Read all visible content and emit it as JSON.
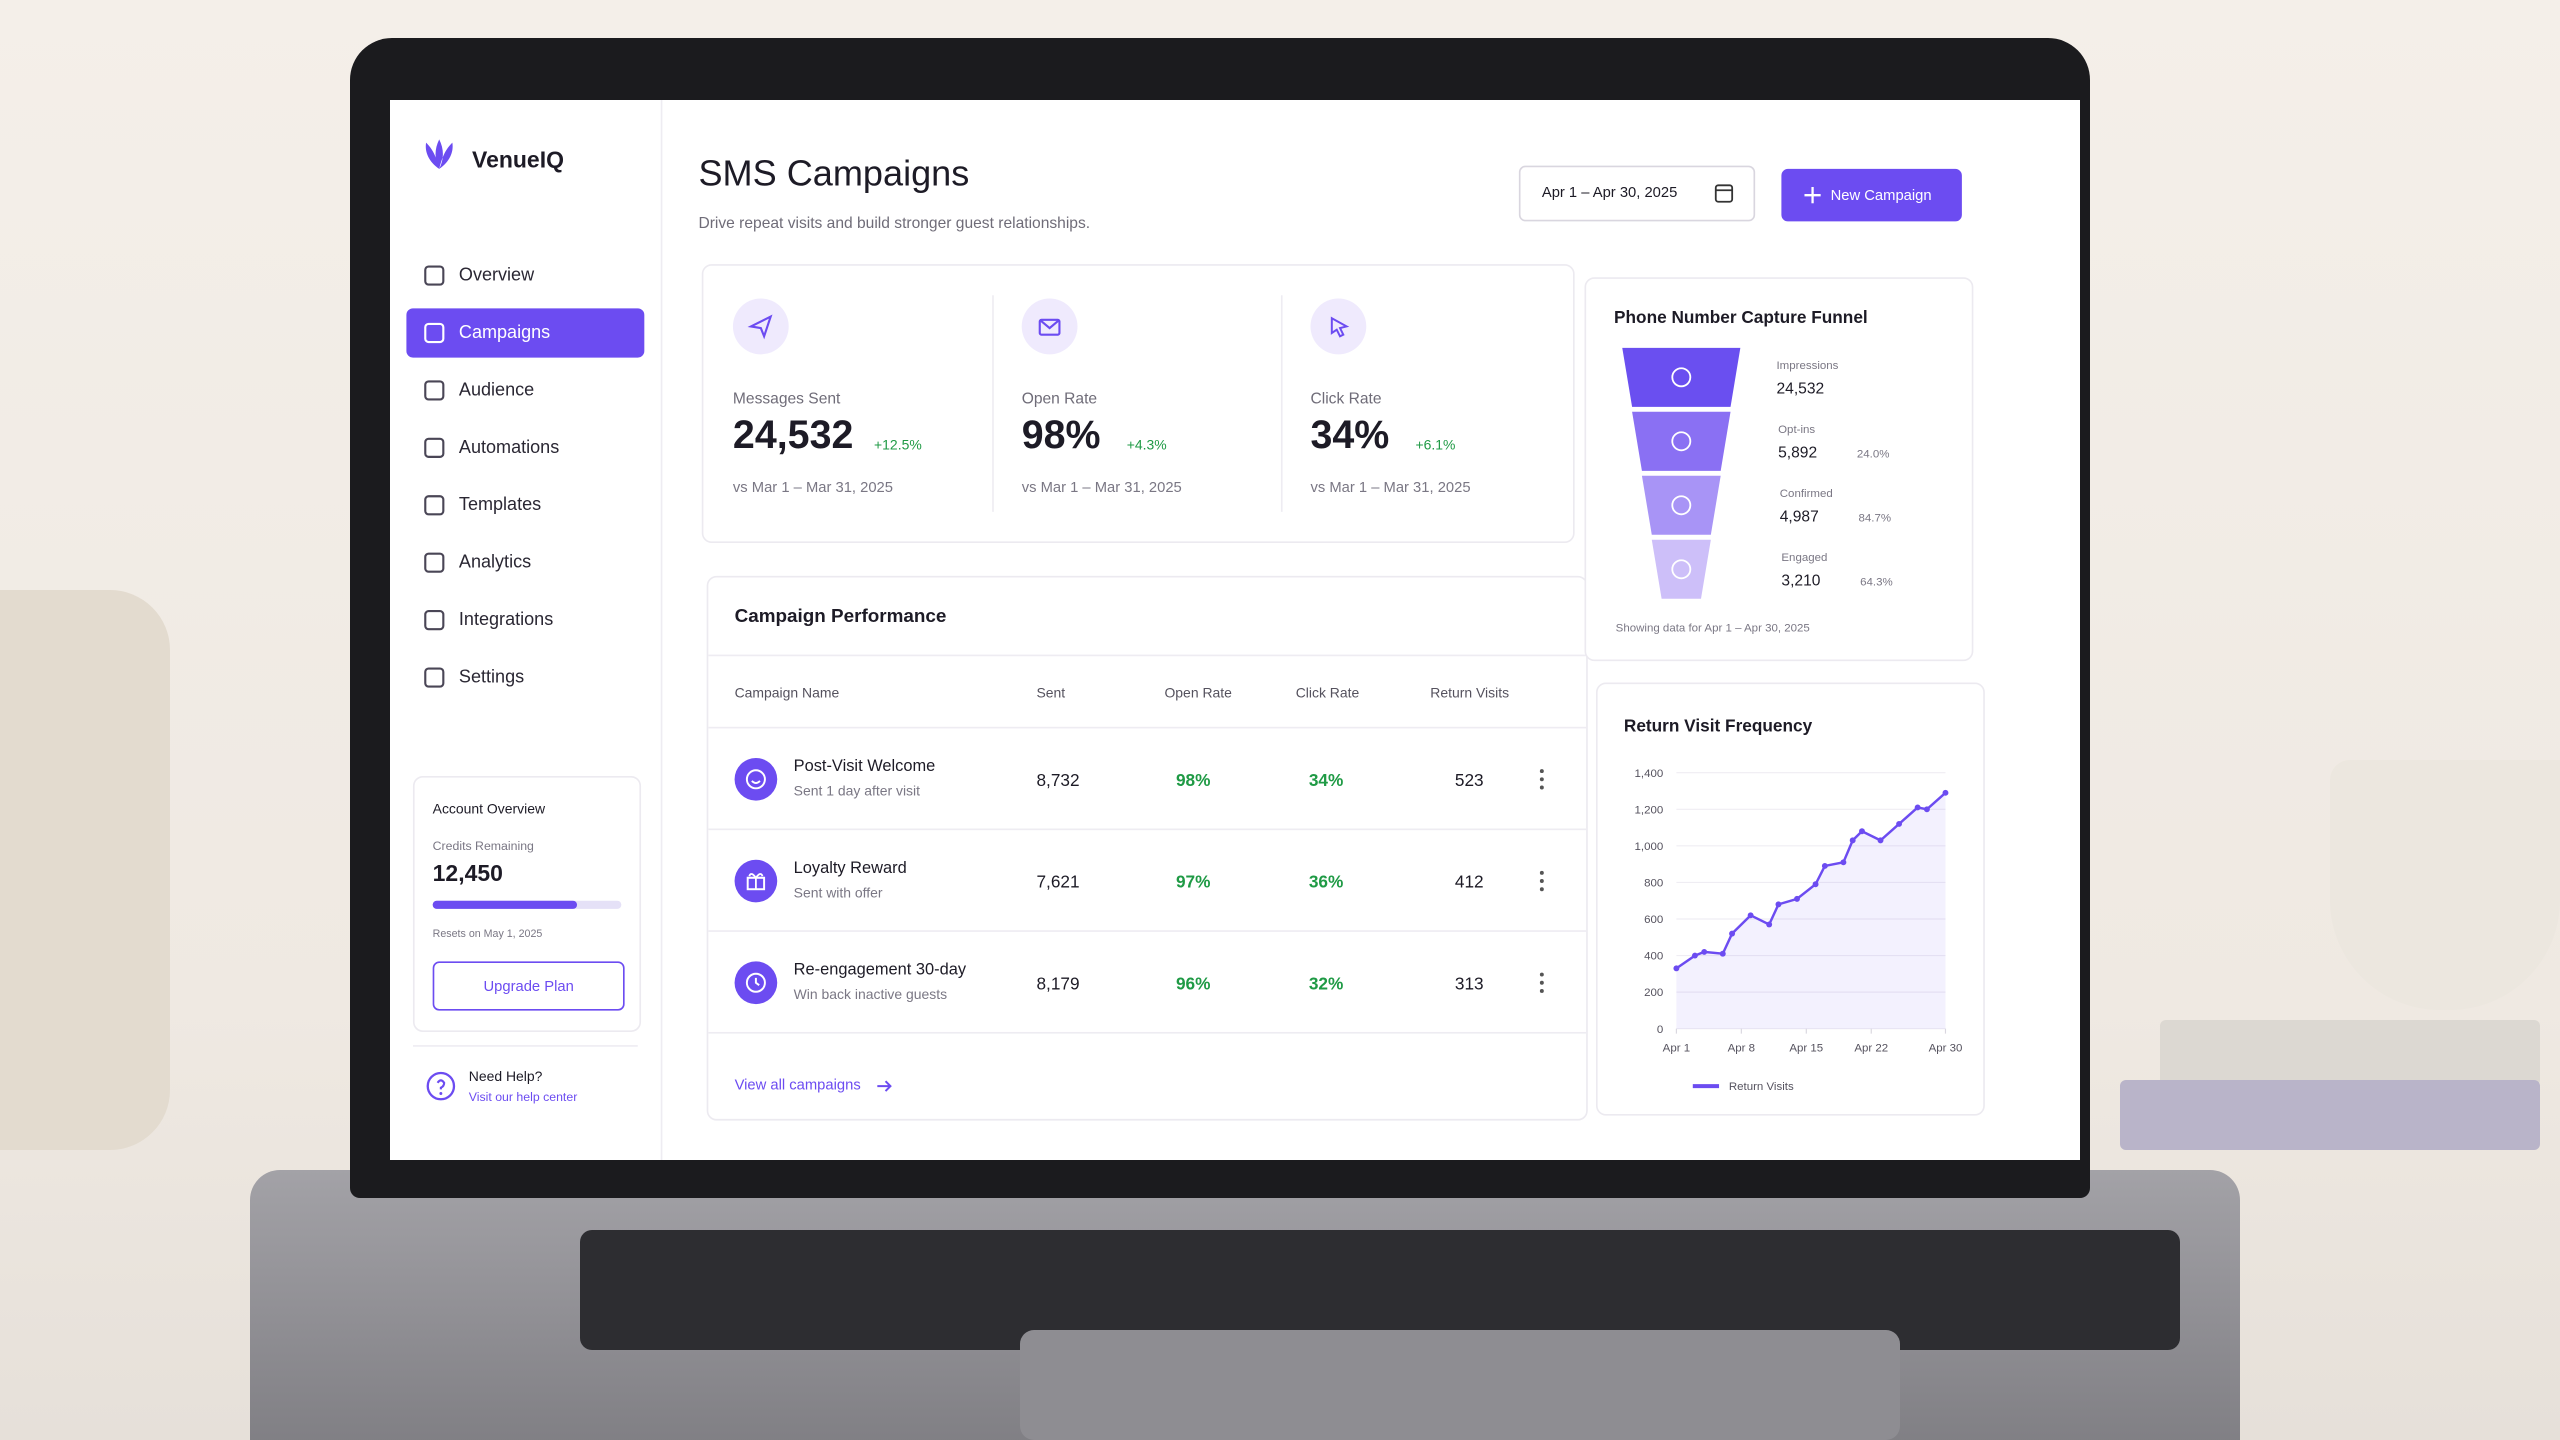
{
  "sidebar": {
    "brand": "VenueIQ",
    "nav": [
      {
        "label": "Overview",
        "active": false
      },
      {
        "label": "Campaigns",
        "active": true
      },
      {
        "label": "Audience",
        "active": false
      },
      {
        "label": "Automations",
        "active": false
      },
      {
        "label": "Templates",
        "active": false
      },
      {
        "label": "Analytics",
        "active": false
      },
      {
        "label": "Integrations",
        "active": false
      },
      {
        "label": "Settings",
        "active": false
      }
    ],
    "account": {
      "title": "Account Overview",
      "credits_label": "Credits Remaining",
      "credits": "12,450",
      "resets": "Resets on May 1, 2025",
      "button": "Upgrade Plan"
    },
    "help": {
      "title": "Need Help?",
      "link": "Visit our help center"
    }
  },
  "header": {
    "title": "SMS Campaigns",
    "subtitle": "Drive repeat visits and build stronger guest relationships.",
    "date_range": "Apr 1 – Apr 30, 2025",
    "button": "New Campaign"
  },
  "kpis": [
    {
      "label": "Messages Sent",
      "value": "24,532",
      "change": "+12.5%",
      "comparison": "vs Mar 1 – Mar 31, 2025"
    },
    {
      "label": "Open Rate",
      "value": "98%",
      "change": "+4.3%",
      "comparison": "vs Mar 1 – Mar 31, 2025"
    },
    {
      "label": "Click Rate",
      "value": "34%",
      "change": "+6.1%",
      "comparison": "vs Mar 1 – Mar 31, 2025"
    }
  ],
  "campaign_performance": {
    "title": "Campaign Performance",
    "columns": [
      "Campaign Name",
      "Sent",
      "Open Rate",
      "Click Rate",
      "Return Visits"
    ],
    "rows": [
      {
        "name": "Post-Visit Welcome",
        "subtitle": "Sent 1 day after visit",
        "sent": "8,732",
        "open_rate": "98%",
        "click_rate": "34%",
        "return_visits": "523"
      },
      {
        "name": "Loyalty Reward",
        "subtitle": "Sent with offer",
        "sent": "7,621",
        "open_rate": "97%",
        "click_rate": "36%",
        "return_visits": "412"
      },
      {
        "name": "Re-engagement 30-day",
        "subtitle": "Win back inactive guests",
        "sent": "8,179",
        "open_rate": "96%",
        "click_rate": "32%",
        "return_visits": "313"
      }
    ],
    "footer_link": "View all campaigns"
  },
  "funnel": {
    "title": "Phone Number Capture Funnel",
    "stages": [
      {
        "label": "Impressions",
        "value": "24,532"
      },
      {
        "label": "Opt-ins",
        "value": "5,892",
        "rate": "24.0%"
      },
      {
        "label": "Confirmed",
        "value": "4,987",
        "rate": "84.7%"
      },
      {
        "label": "Engaged",
        "value": "3,210",
        "rate": "64.3%"
      }
    ],
    "note": "Showing data for Apr 1 – Apr 30, 2025"
  },
  "chart_data": {
    "type": "line",
    "title": "Return Visit Frequency",
    "x": [
      1,
      3,
      4,
      6,
      7,
      9,
      11,
      12,
      14,
      16,
      17,
      19,
      20,
      21,
      23,
      25,
      27,
      28,
      30
    ],
    "series": [
      {
        "name": "Return Visits",
        "color": "#6c4cf1",
        "values": [
          330,
          400,
          420,
          410,
          520,
          620,
          570,
          680,
          710,
          790,
          890,
          910,
          1030,
          1080,
          1030,
          1120,
          1210,
          1200,
          1290
        ]
      }
    ],
    "xlim": [
      1,
      30
    ],
    "xticks": [
      {
        "value": 1,
        "label": "Apr 1"
      },
      {
        "value": 8,
        "label": "Apr 8"
      },
      {
        "value": 15,
        "label": "Apr 15"
      },
      {
        "value": 22,
        "label": "Apr 22"
      },
      {
        "value": 30,
        "label": "Apr 30"
      }
    ],
    "ylim": [
      0,
      1400
    ],
    "yticks": [
      0,
      200,
      400,
      600,
      800,
      {
        "value": 1000,
        "label": "1,000"
      },
      {
        "value": 1200,
        "label": "1,200"
      },
      {
        "value": 1400,
        "label": "1,400"
      }
    ],
    "grid": true
  }
}
